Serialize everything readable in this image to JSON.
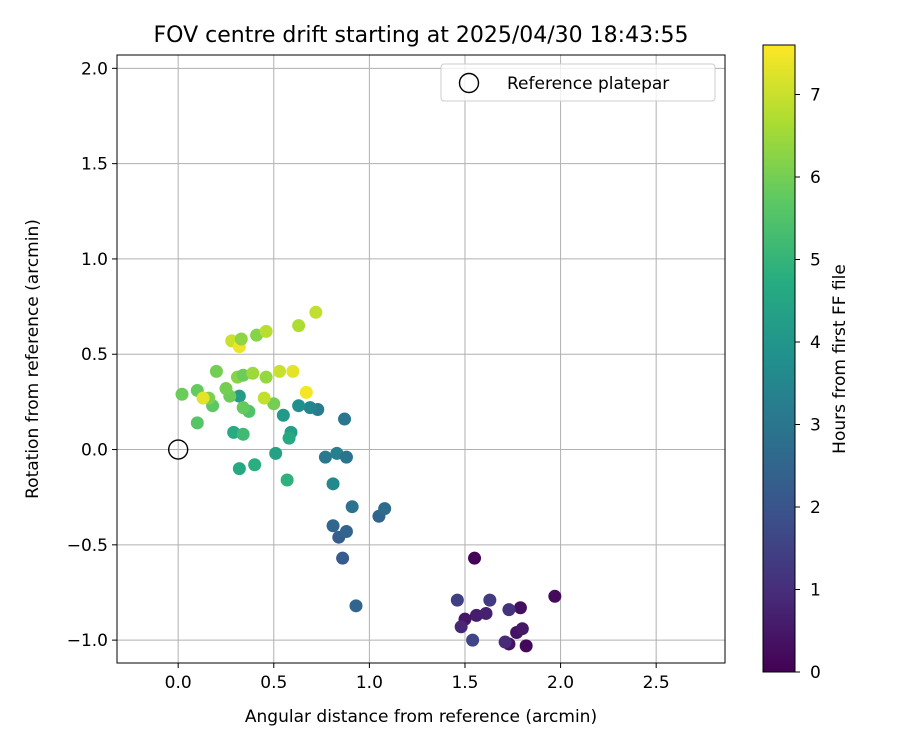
{
  "chart_data": {
    "type": "scatter",
    "title": "FOV centre drift starting at 2025/04/30 18:43:55",
    "xlabel": "Angular distance from reference (arcmin)",
    "ylabel": "Rotation from reference (arcmin)",
    "xlim": [
      -0.32,
      2.86
    ],
    "ylim": [
      -1.12,
      2.07
    ],
    "xticks": [
      0.0,
      0.5,
      1.0,
      1.5,
      2.0,
      2.5
    ],
    "xtick_labels": [
      "0.0",
      "0.5",
      "1.0",
      "1.5",
      "2.0",
      "2.5"
    ],
    "yticks": [
      -1.0,
      -0.5,
      0.0,
      0.5,
      1.0,
      1.5,
      2.0
    ],
    "ytick_labels": [
      "−1.0",
      "−0.5",
      "0.0",
      "0.5",
      "1.0",
      "1.5",
      "2.0"
    ],
    "grid": true,
    "legend": {
      "position": "upper right",
      "label": "Reference platepar"
    },
    "reference_point": {
      "x": 0.0,
      "y": 0.0
    },
    "colorbar": {
      "label": "Hours from first FF file",
      "colormap": "viridis",
      "range": [
        0,
        7.6
      ],
      "ticks": [
        0,
        1,
        2,
        3,
        4,
        5,
        6,
        7
      ],
      "tick_labels": [
        "0",
        "1",
        "2",
        "3",
        "4",
        "5",
        "6",
        "7"
      ]
    },
    "points": [
      {
        "x": 1.55,
        "y": -0.57,
        "t": 0.05
      },
      {
        "x": 1.97,
        "y": -0.77,
        "t": 0.2
      },
      {
        "x": 1.79,
        "y": -0.83,
        "t": 0.3
      },
      {
        "x": 1.82,
        "y": -1.03,
        "t": 0.15
      },
      {
        "x": 1.73,
        "y": -1.02,
        "t": 0.35
      },
      {
        "x": 1.77,
        "y": -0.96,
        "t": 0.4
      },
      {
        "x": 1.8,
        "y": -0.94,
        "t": 0.5
      },
      {
        "x": 1.5,
        "y": -0.89,
        "t": 0.45
      },
      {
        "x": 1.56,
        "y": -0.87,
        "t": 0.6
      },
      {
        "x": 1.61,
        "y": -0.86,
        "t": 0.7
      },
      {
        "x": 1.48,
        "y": -0.93,
        "t": 0.85
      },
      {
        "x": 1.71,
        "y": -1.01,
        "t": 0.9
      },
      {
        "x": 1.73,
        "y": -0.84,
        "t": 1.1
      },
      {
        "x": 1.63,
        "y": -0.79,
        "t": 1.3
      },
      {
        "x": 1.46,
        "y": -0.79,
        "t": 1.45
      },
      {
        "x": 1.54,
        "y": -1.0,
        "t": 1.6
      },
      {
        "x": 0.93,
        "y": -0.82,
        "t": 2.5
      },
      {
        "x": 0.86,
        "y": -0.57,
        "t": 2.2
      },
      {
        "x": 0.84,
        "y": -0.46,
        "t": 2.3
      },
      {
        "x": 0.88,
        "y": -0.43,
        "t": 2.45
      },
      {
        "x": 0.81,
        "y": -0.4,
        "t": 2.55
      },
      {
        "x": 1.05,
        "y": -0.35,
        "t": 2.5
      },
      {
        "x": 1.08,
        "y": -0.31,
        "t": 2.7
      },
      {
        "x": 0.91,
        "y": -0.3,
        "t": 2.9
      },
      {
        "x": 0.81,
        "y": -0.18,
        "t": 3.6
      },
      {
        "x": 0.77,
        "y": -0.04,
        "t": 3.1
      },
      {
        "x": 0.83,
        "y": -0.02,
        "t": 3.3
      },
      {
        "x": 0.88,
        "y": -0.04,
        "t": 2.95
      },
      {
        "x": 0.87,
        "y": 0.16,
        "t": 3.0
      },
      {
        "x": 0.73,
        "y": 0.21,
        "t": 3.2
      },
      {
        "x": 0.69,
        "y": 0.22,
        "t": 3.5
      },
      {
        "x": 0.63,
        "y": 0.23,
        "t": 3.8
      },
      {
        "x": 0.55,
        "y": 0.18,
        "t": 4.1
      },
      {
        "x": 0.59,
        "y": 0.09,
        "t": 4.3
      },
      {
        "x": 0.58,
        "y": 0.06,
        "t": 4.6
      },
      {
        "x": 0.51,
        "y": -0.02,
        "t": 4.4
      },
      {
        "x": 0.4,
        "y": -0.08,
        "t": 4.8
      },
      {
        "x": 0.32,
        "y": -0.1,
        "t": 4.6
      },
      {
        "x": 0.57,
        "y": -0.16,
        "t": 4.9
      },
      {
        "x": 0.32,
        "y": 0.28,
        "t": 4.2
      },
      {
        "x": 0.29,
        "y": 0.09,
        "t": 4.7
      },
      {
        "x": 0.34,
        "y": 0.08,
        "t": 5.2
      },
      {
        "x": 0.37,
        "y": 0.2,
        "t": 5.5
      },
      {
        "x": 0.34,
        "y": 0.22,
        "t": 5.8
      },
      {
        "x": 0.27,
        "y": 0.28,
        "t": 5.9
      },
      {
        "x": 0.25,
        "y": 0.32,
        "t": 6.0
      },
      {
        "x": 0.18,
        "y": 0.23,
        "t": 5.7
      },
      {
        "x": 0.16,
        "y": 0.27,
        "t": 6.1
      },
      {
        "x": 0.1,
        "y": 0.14,
        "t": 5.6
      },
      {
        "x": 0.02,
        "y": 0.29,
        "t": 5.9
      },
      {
        "x": 0.1,
        "y": 0.31,
        "t": 5.8
      },
      {
        "x": 0.2,
        "y": 0.41,
        "t": 6.0
      },
      {
        "x": 0.31,
        "y": 0.38,
        "t": 6.2
      },
      {
        "x": 0.34,
        "y": 0.39,
        "t": 5.9
      },
      {
        "x": 0.39,
        "y": 0.4,
        "t": 6.5
      },
      {
        "x": 0.46,
        "y": 0.38,
        "t": 6.4
      },
      {
        "x": 0.5,
        "y": 0.24,
        "t": 6.0
      },
      {
        "x": 0.45,
        "y": 0.27,
        "t": 6.9
      },
      {
        "x": 0.53,
        "y": 0.41,
        "t": 7.0
      },
      {
        "x": 0.6,
        "y": 0.41,
        "t": 7.3
      },
      {
        "x": 0.67,
        "y": 0.3,
        "t": 7.5
      },
      {
        "x": 0.13,
        "y": 0.27,
        "t": 7.3
      },
      {
        "x": 0.28,
        "y": 0.57,
        "t": 7.0
      },
      {
        "x": 0.32,
        "y": 0.54,
        "t": 7.4
      },
      {
        "x": 0.33,
        "y": 0.58,
        "t": 6.3
      },
      {
        "x": 0.41,
        "y": 0.6,
        "t": 6.2
      },
      {
        "x": 0.46,
        "y": 0.62,
        "t": 6.8
      },
      {
        "x": 0.63,
        "y": 0.65,
        "t": 6.7
      },
      {
        "x": 0.72,
        "y": 0.72,
        "t": 6.9
      }
    ]
  }
}
